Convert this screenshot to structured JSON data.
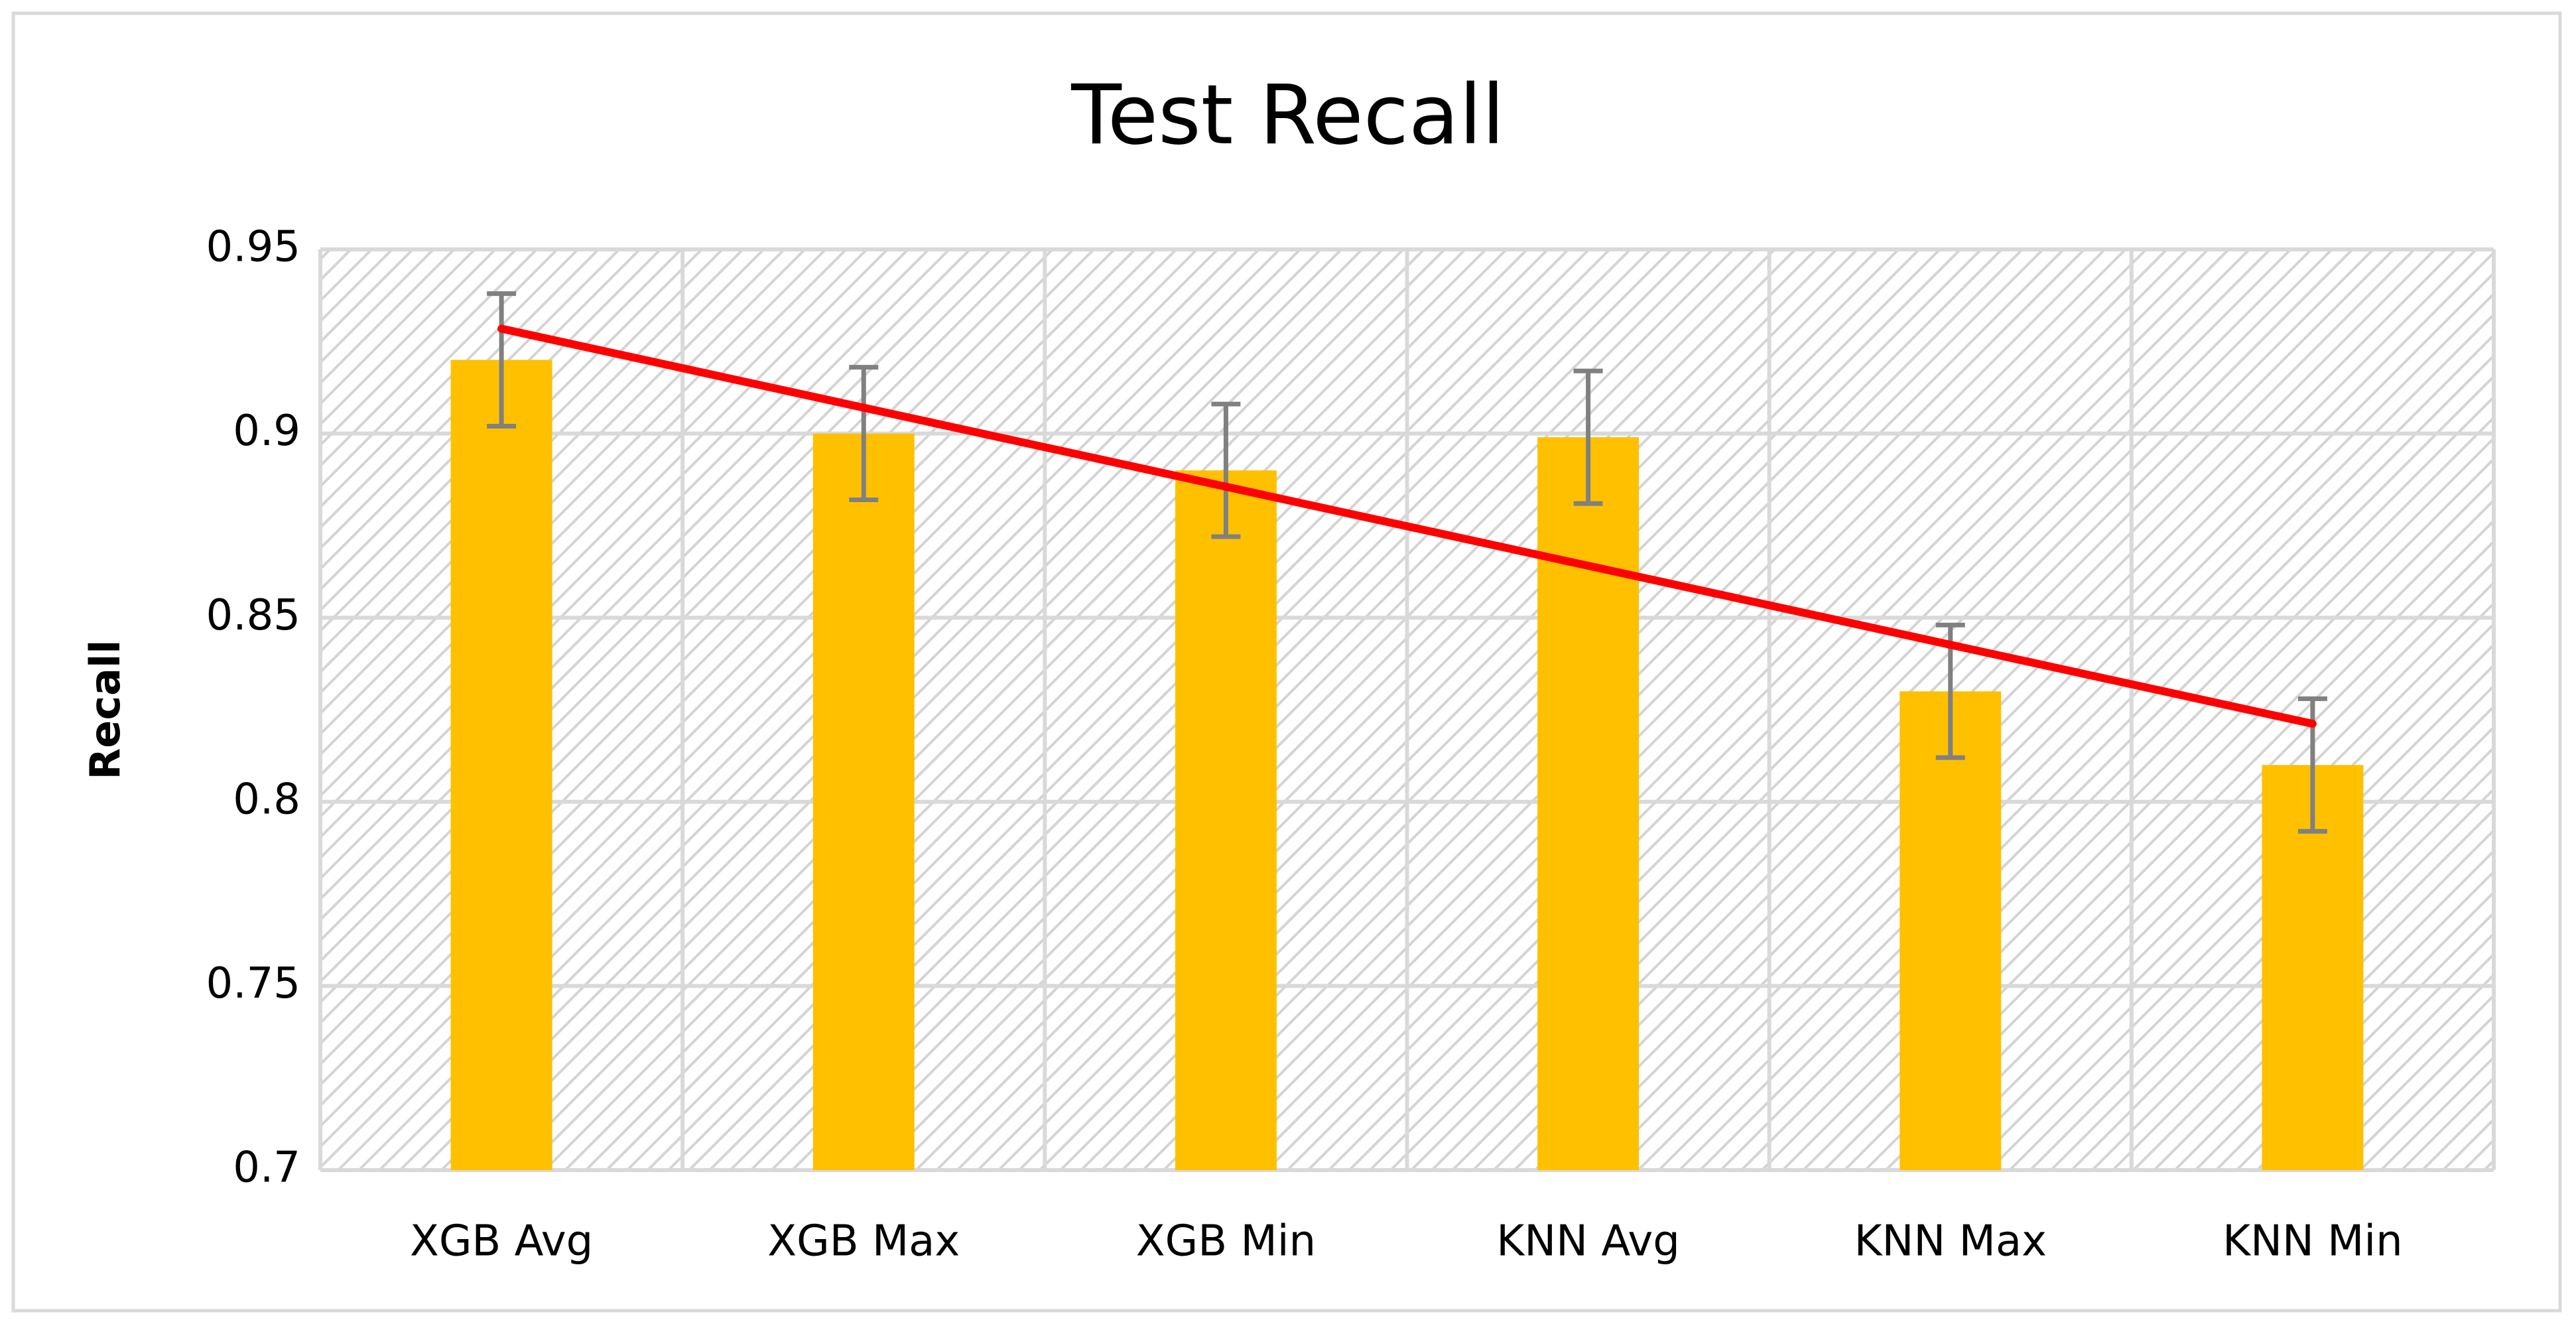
{
  "chart_data": {
    "type": "bar",
    "title": "Test Recall",
    "y_label": "Recall",
    "categories": [
      "XGB Avg",
      "XGB Max",
      "XGB Min",
      "KNN Avg",
      "KNN Max",
      "KNN Min"
    ],
    "values": [
      0.92,
      0.9,
      0.89,
      0.899,
      0.83,
      0.81
    ],
    "errors": [
      0.018,
      0.018,
      0.018,
      0.018,
      0.018,
      0.018
    ],
    "color": "#ffc000",
    "error_color": "#808080",
    "trendline": {
      "type": "linear",
      "color": "#ff0000"
    },
    "ylim": [
      0.7,
      0.95
    ],
    "yticks": [
      {
        "value": 0.7,
        "label": "0.7"
      },
      0.75,
      0.8,
      0.85,
      {
        "value": 0.9,
        "label": "0.9"
      },
      0.95
    ],
    "grid": true
  }
}
